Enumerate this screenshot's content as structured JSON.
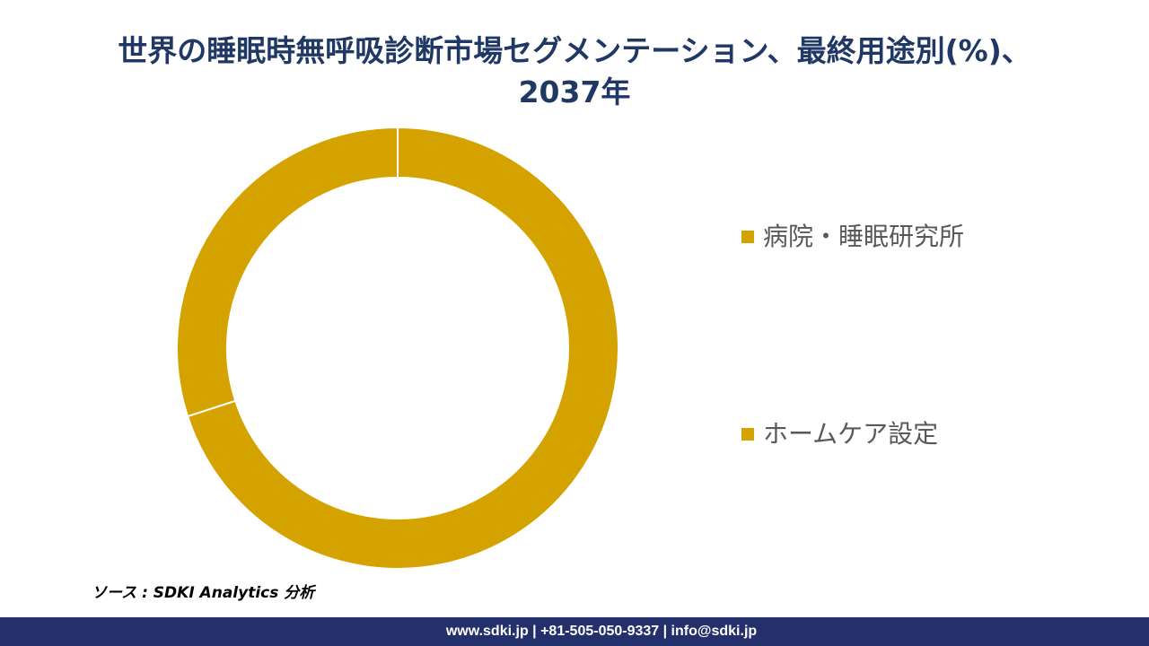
{
  "header": {
    "title_line1": "世界の睡眠時無呼吸診断市場セグメンテーション、最終用途別(%)、",
    "title_line2": "2037年"
  },
  "chart_data": {
    "type": "pie",
    "variant": "donut",
    "categories": [
      "病院・睡眠研究所",
      "ホームケア設定"
    ],
    "values": [
      70,
      30
    ],
    "colors": [
      "#d4a300",
      "#d4a300"
    ],
    "legend_position": "right"
  },
  "legend": {
    "items": [
      {
        "label": "病院・睡眠研究所",
        "color": "#d4a300"
      },
      {
        "label": "ホームケア設定",
        "color": "#d4a300"
      }
    ]
  },
  "source": {
    "text": "ソース : SDKI Analytics 分析"
  },
  "footer": {
    "contact": "www.sdki.jp | +81-505-050-9337 | info@sdki.jp",
    "background": "#24306b"
  }
}
